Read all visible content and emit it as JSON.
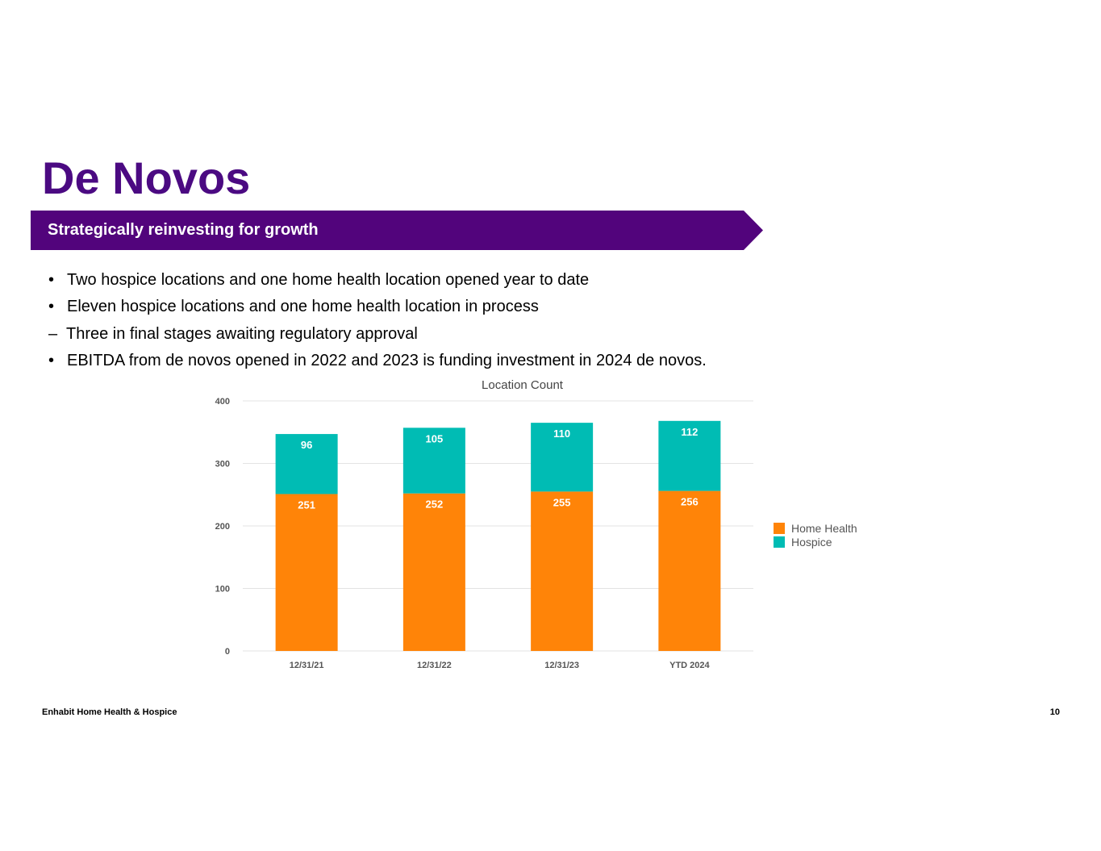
{
  "page": {
    "title": "De Novos",
    "banner": "Strategically reinvesting for growth",
    "bullets": [
      {
        "marker": "•",
        "text": "Two hospice locations and one home health location opened year to date",
        "level": 1
      },
      {
        "marker": "•",
        "text": "Eleven hospice locations and one home health location in process",
        "level": 1
      },
      {
        "marker": "–",
        "text": "Three in final stages awaiting regulatory approval",
        "level": 2
      },
      {
        "marker": "•",
        "text": "EBITDA from de novos opened in 2022 and 2023 is funding investment in 2024 de novos.",
        "level": 1
      }
    ],
    "footer_left": "Enhabit Home Health & Hospice",
    "page_number": "10"
  },
  "colors": {
    "brand_purple": "#4b0a82",
    "banner_purple": "#52047c",
    "home_health": "#ff8408",
    "hospice": "#00bcb4"
  },
  "chart_data": {
    "type": "bar",
    "stacked": true,
    "title": "Location Count",
    "categories": [
      "12/31/21",
      "12/31/22",
      "12/31/23",
      "YTD 2024"
    ],
    "series": [
      {
        "name": "Home Health",
        "values": [
          251,
          252,
          255,
          256
        ],
        "color": "#ff8408"
      },
      {
        "name": "Hospice",
        "values": [
          96,
          105,
          110,
          112
        ],
        "color": "#00bcb4"
      }
    ],
    "ylim": [
      0,
      400
    ],
    "yticks": [
      0,
      100,
      200,
      300,
      400
    ],
    "xlabel": "",
    "ylabel": "",
    "legend": "right",
    "grid": true
  }
}
